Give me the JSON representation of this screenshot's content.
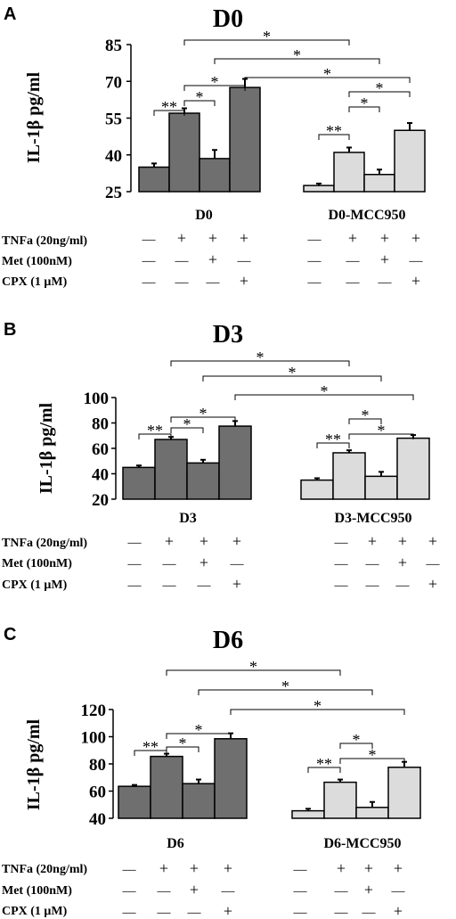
{
  "colors": {
    "bar_dark": "#6f6f6f",
    "bar_light": "#dcdcdc",
    "stroke": "#000000"
  },
  "treatment_rows": [
    {
      "label": "TNFa (20ng/ml)",
      "signs": [
        "—",
        "+",
        "+",
        "+"
      ]
    },
    {
      "label": "Met (100nM)",
      "signs": [
        "—",
        "—",
        "+",
        "—"
      ]
    },
    {
      "label": "CPX (1 μM)",
      "signs": [
        "—",
        "—",
        "—",
        "+"
      ]
    }
  ],
  "chart_data": [
    {
      "type": "bar",
      "panel_letter": "A",
      "title": "D0",
      "ylabel": "IL-1β  pg/ml",
      "ylim": [
        25,
        85
      ],
      "yticks": [
        "25",
        "40",
        "55",
        "70",
        "85"
      ],
      "groups": [
        "D0",
        "D0-MCC950"
      ],
      "series": [
        {
          "values": [
            35,
            57,
            38.5,
            67.5
          ],
          "errors": [
            1.5,
            2,
            3.5,
            3.5
          ]
        },
        {
          "values": [
            27.5,
            41,
            32,
            50
          ],
          "errors": [
            0.8,
            2,
            2,
            3
          ]
        }
      ],
      "significance": [
        {
          "from": [
            0,
            0
          ],
          "to": [
            0,
            1
          ],
          "label": "**"
        },
        {
          "from": [
            0,
            1
          ],
          "to": [
            0,
            3
          ],
          "label": "*"
        },
        {
          "from": [
            0,
            1
          ],
          "to": [
            0,
            2
          ],
          "label": "*"
        },
        {
          "from": [
            0,
            1
          ],
          "to": [
            1,
            1
          ],
          "label": "*"
        },
        {
          "from": [
            0,
            2
          ],
          "to": [
            1,
            2
          ],
          "label": "*"
        },
        {
          "from": [
            0,
            3
          ],
          "to": [
            1,
            3
          ],
          "label": "*"
        },
        {
          "from": [
            1,
            0
          ],
          "to": [
            1,
            1
          ],
          "label": "**"
        },
        {
          "from": [
            1,
            1
          ],
          "to": [
            1,
            2
          ],
          "label": "*"
        },
        {
          "from": [
            1,
            1
          ],
          "to": [
            1,
            3
          ],
          "label": "*"
        }
      ]
    },
    {
      "type": "bar",
      "panel_letter": "B",
      "title": "D3",
      "ylabel": "IL-1β  pg/ml",
      "ylim": [
        20,
        100
      ],
      "yticks": [
        "20",
        "40",
        "60",
        "80",
        "100"
      ],
      "groups": [
        "D3",
        "D3-MCC950"
      ],
      "series": [
        {
          "values": [
            45,
            67,
            48.5,
            77.5
          ],
          "errors": [
            1.5,
            2,
            2.5,
            4
          ]
        },
        {
          "values": [
            35,
            56.5,
            38,
            68
          ],
          "errors": [
            1.5,
            2,
            3.5,
            2.5
          ]
        }
      ],
      "significance": [
        {
          "from": [
            0,
            0
          ],
          "to": [
            0,
            1
          ],
          "label": "**"
        },
        {
          "from": [
            0,
            1
          ],
          "to": [
            0,
            3
          ],
          "label": "*"
        },
        {
          "from": [
            0,
            1
          ],
          "to": [
            0,
            2
          ],
          "label": "*"
        },
        {
          "from": [
            0,
            1
          ],
          "to": [
            1,
            1
          ],
          "label": "*"
        },
        {
          "from": [
            0,
            2
          ],
          "to": [
            1,
            2
          ],
          "label": "*"
        },
        {
          "from": [
            0,
            3
          ],
          "to": [
            1,
            3
          ],
          "label": "*"
        },
        {
          "from": [
            1,
            0
          ],
          "to": [
            1,
            1
          ],
          "label": "**"
        },
        {
          "from": [
            1,
            1
          ],
          "to": [
            1,
            2
          ],
          "label": "*"
        },
        {
          "from": [
            1,
            1
          ],
          "to": [
            1,
            3
          ],
          "label": "*"
        }
      ]
    },
    {
      "type": "bar",
      "panel_letter": "C",
      "title": "D6",
      "ylabel": "IL-1β  pg/ml",
      "ylim": [
        40,
        120
      ],
      "yticks": [
        "40",
        "60",
        "80",
        "100",
        "120"
      ],
      "groups": [
        "D6",
        "D6-MCC950"
      ],
      "series": [
        {
          "values": [
            63.5,
            85.5,
            65.5,
            98.5
          ],
          "errors": [
            1,
            2,
            3,
            4
          ]
        },
        {
          "values": [
            45.5,
            66.5,
            48,
            77.5
          ],
          "errors": [
            1.5,
            2,
            4,
            4
          ]
        }
      ],
      "significance": [
        {
          "from": [
            0,
            0
          ],
          "to": [
            0,
            1
          ],
          "label": "**"
        },
        {
          "from": [
            0,
            1
          ],
          "to": [
            0,
            3
          ],
          "label": "*"
        },
        {
          "from": [
            0,
            1
          ],
          "to": [
            0,
            2
          ],
          "label": "*"
        },
        {
          "from": [
            0,
            1
          ],
          "to": [
            1,
            1
          ],
          "label": "*"
        },
        {
          "from": [
            0,
            2
          ],
          "to": [
            1,
            2
          ],
          "label": "*"
        },
        {
          "from": [
            0,
            3
          ],
          "to": [
            1,
            3
          ],
          "label": "*"
        },
        {
          "from": [
            1,
            0
          ],
          "to": [
            1,
            1
          ],
          "label": "**"
        },
        {
          "from": [
            1,
            1
          ],
          "to": [
            1,
            2
          ],
          "label": "*"
        },
        {
          "from": [
            1,
            1
          ],
          "to": [
            1,
            3
          ],
          "label": "*"
        }
      ]
    }
  ]
}
